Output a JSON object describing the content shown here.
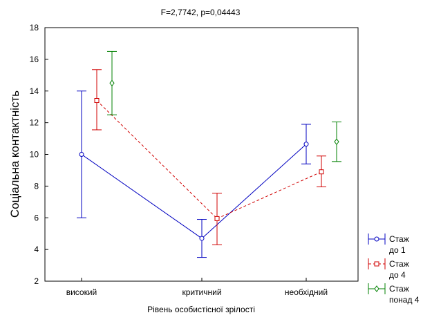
{
  "chart_data": {
    "type": "line",
    "title": "F=2,7742, p=0,04443",
    "xlabel": "Рівень особистісної зрілості",
    "ylabel": "Соціальна контактність",
    "categories": [
      "високий",
      "критичний",
      "необхідний"
    ],
    "ylim": [
      2,
      18
    ],
    "yticks": [
      "2",
      "4",
      "6",
      "8",
      "10",
      "12",
      "14",
      "16",
      "18"
    ],
    "grid": false,
    "legend_placement": "bottom-right",
    "series": [
      {
        "name_lines": [
          "Стаж",
          "до 1"
        ],
        "color": "#0000c0",
        "line_style": "solid",
        "marker": "circle",
        "values": [
          10.0,
          4.7,
          10.65
        ],
        "lower": [
          6.0,
          3.5,
          9.4
        ],
        "upper": [
          14.0,
          5.9,
          11.9
        ]
      },
      {
        "name_lines": [
          "Стаж",
          "до 4"
        ],
        "color": "#d00000",
        "line_style": "dashed",
        "marker": "square",
        "values": [
          13.4,
          5.95,
          8.9
        ],
        "lower": [
          11.55,
          4.3,
          7.95
        ],
        "upper": [
          15.35,
          7.55,
          9.9
        ]
      },
      {
        "name_lines": [
          "Стаж",
          "понад 4"
        ],
        "color": "#008000",
        "line_style": "none",
        "marker": "diamond",
        "values": [
          14.5,
          null,
          10.8
        ],
        "lower": [
          12.5,
          null,
          9.55
        ],
        "upper": [
          16.5,
          null,
          12.05
        ]
      }
    ]
  }
}
